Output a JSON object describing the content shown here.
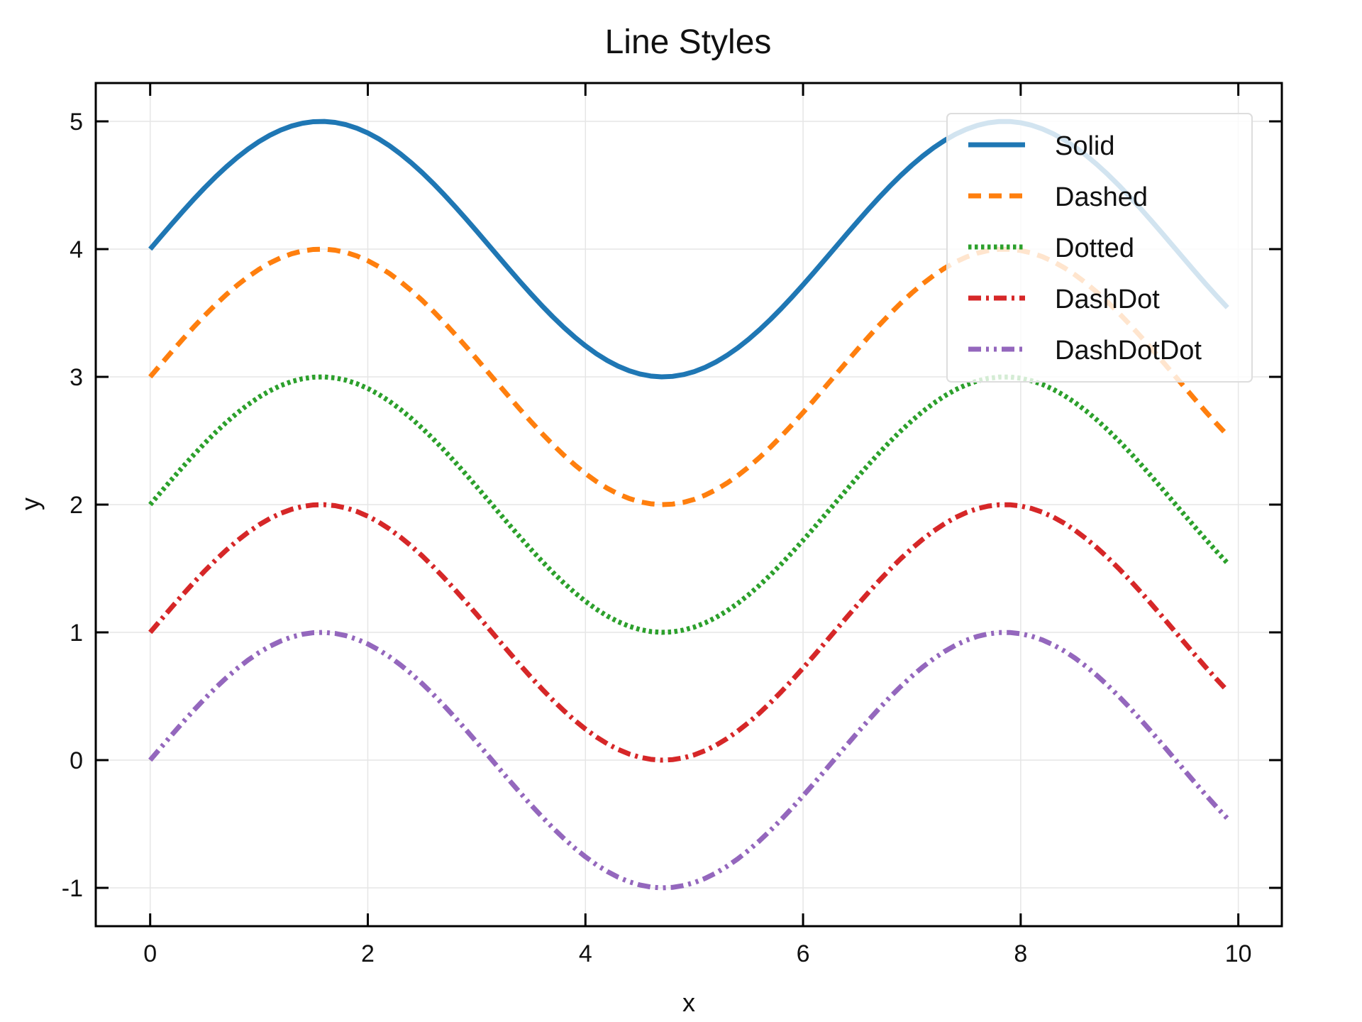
{
  "chart_data": {
    "type": "line",
    "title": "Line Styles",
    "xlabel": "x",
    "ylabel": "y",
    "xlim": [
      -0.5,
      10.4
    ],
    "ylim": [
      -1.3,
      5.3
    ],
    "grid": true,
    "legend_position": "top-right",
    "x_ticks": [
      0,
      2,
      4,
      6,
      8,
      10
    ],
    "y_ticks": [
      -1,
      0,
      1,
      2,
      3,
      4,
      5
    ],
    "x_tick_labels": [
      "0",
      "2",
      "4",
      "6",
      "8",
      "10"
    ],
    "y_tick_labels": [
      "-1",
      "0",
      "1",
      "2",
      "3",
      "4",
      "5"
    ],
    "x": {
      "start": 0,
      "stop": 9.9,
      "step": 0.1
    },
    "series": [
      {
        "name": "Solid",
        "formula": "sin(x) + 4",
        "offset": 4,
        "style": "solid",
        "color": "#1f77b4"
      },
      {
        "name": "Dashed",
        "formula": "sin(x) + 3",
        "offset": 3,
        "style": "dashed",
        "color": "#ff7f0e"
      },
      {
        "name": "Dotted",
        "formula": "sin(x) + 2",
        "offset": 2,
        "style": "dotted",
        "color": "#2ca02c"
      },
      {
        "name": "DashDot",
        "formula": "sin(x) + 1",
        "offset": 1,
        "style": "dashdot",
        "color": "#d62728"
      },
      {
        "name": "DashDotDot",
        "formula": "sin(x)",
        "offset": 0,
        "style": "dashdotdot",
        "color": "#9467bd"
      }
    ]
  }
}
